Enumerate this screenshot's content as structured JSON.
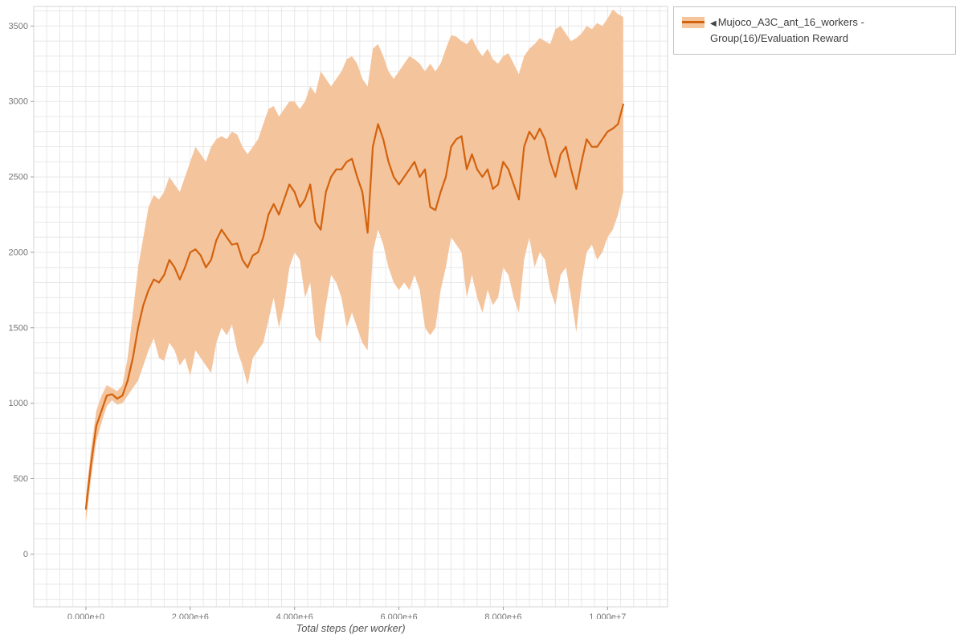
{
  "colors": {
    "line": "#d3620d",
    "band": "#f4c49d",
    "grid": "#e8e8e8",
    "axis_border": "#d5d5d5",
    "tick": "#9a9a9a",
    "tick_text": "#777777",
    "legend_border": "#c3c3c3",
    "legend_text": "#3d3d3d"
  },
  "legend": {
    "toggle_icon": "◀",
    "label": "Mujoco_A3C_ant_16_workers - Group(16)/Evaluation Reward"
  },
  "chart_data": {
    "type": "line",
    "title": "",
    "xlabel": "Total steps (per worker)",
    "ylabel": "",
    "legend_position": "top-right-outside",
    "grid": true,
    "xlim": [
      -1000000,
      11150000
    ],
    "ylim": [
      -350,
      3630
    ],
    "x_minor_step": 250000,
    "y_minor_step": 100,
    "x_tick_values": [
      0,
      2000000,
      4000000,
      6000000,
      8000000,
      10000000
    ],
    "x_tick_labels": [
      "0.000e+0",
      "2.000e+6",
      "4.000e+6",
      "6.000e+6",
      "8.000e+6",
      "1.000e+7"
    ],
    "y_tick_values": [
      0,
      500,
      1000,
      1500,
      2000,
      2500,
      3000,
      3500
    ],
    "y_tick_labels": [
      "0",
      "500",
      "1000",
      "1500",
      "2000",
      "2500",
      "3000",
      "3500"
    ],
    "series": [
      {
        "name": "Mujoco_A3C_ant_16_workers - Group(16)/Evaluation Reward",
        "x_start": 0,
        "x_step": 100000,
        "mean": [
          300,
          600,
          850,
          950,
          1050,
          1060,
          1030,
          1050,
          1150,
          1300,
          1500,
          1650,
          1750,
          1820,
          1800,
          1850,
          1950,
          1900,
          1820,
          1900,
          2000,
          2020,
          1980,
          1900,
          1950,
          2080,
          2150,
          2100,
          2050,
          2060,
          1950,
          1900,
          1980,
          2000,
          2100,
          2250,
          2320,
          2250,
          2350,
          2450,
          2400,
          2300,
          2350,
          2450,
          2200,
          2150,
          2400,
          2500,
          2550,
          2550,
          2600,
          2620,
          2500,
          2400,
          2130,
          2700,
          2850,
          2750,
          2600,
          2500,
          2450,
          2500,
          2550,
          2600,
          2500,
          2550,
          2300,
          2280,
          2400,
          2500,
          2700,
          2750,
          2770,
          2550,
          2650,
          2550,
          2500,
          2550,
          2420,
          2450,
          2600,
          2550,
          2450,
          2350,
          2700,
          2800,
          2750,
          2820,
          2750,
          2600,
          2500,
          2650,
          2700,
          2550,
          2420,
          2600,
          2750,
          2700,
          2700,
          2750,
          2800,
          2820,
          2850,
          2980
        ],
        "upper": [
          380,
          700,
          950,
          1050,
          1120,
          1100,
          1080,
          1120,
          1300,
          1600,
          1900,
          2100,
          2300,
          2380,
          2350,
          2400,
          2500,
          2450,
          2400,
          2500,
          2600,
          2700,
          2650,
          2600,
          2700,
          2750,
          2770,
          2750,
          2800,
          2780,
          2700,
          2650,
          2700,
          2750,
          2850,
          2950,
          2970,
          2900,
          2950,
          3000,
          3000,
          2950,
          3000,
          3100,
          3050,
          3200,
          3150,
          3100,
          3150,
          3200,
          3280,
          3300,
          3250,
          3150,
          3100,
          3350,
          3380,
          3300,
          3200,
          3150,
          3200,
          3250,
          3300,
          3280,
          3250,
          3200,
          3250,
          3200,
          3250,
          3350,
          3440,
          3430,
          3400,
          3380,
          3420,
          3350,
          3300,
          3350,
          3280,
          3250,
          3300,
          3320,
          3250,
          3180,
          3300,
          3350,
          3380,
          3420,
          3400,
          3380,
          3480,
          3500,
          3450,
          3400,
          3420,
          3450,
          3500,
          3480,
          3520,
          3500,
          3550,
          3610,
          3580,
          3560
        ],
        "lower": [
          210,
          500,
          750,
          870,
          980,
          1020,
          990,
          1000,
          1050,
          1100,
          1150,
          1250,
          1350,
          1430,
          1300,
          1280,
          1400,
          1350,
          1250,
          1300,
          1180,
          1350,
          1300,
          1250,
          1200,
          1400,
          1500,
          1450,
          1520,
          1350,
          1250,
          1120,
          1300,
          1350,
          1400,
          1550,
          1700,
          1500,
          1650,
          1900,
          2000,
          1950,
          1700,
          1800,
          1450,
          1400,
          1650,
          1850,
          1800,
          1700,
          1500,
          1600,
          1500,
          1400,
          1350,
          2000,
          2150,
          2050,
          1900,
          1800,
          1750,
          1800,
          1750,
          1850,
          1750,
          1500,
          1450,
          1500,
          1750,
          1900,
          2100,
          2050,
          2000,
          1700,
          1850,
          1700,
          1600,
          1750,
          1650,
          1700,
          1900,
          1850,
          1700,
          1600,
          1950,
          2100,
          1900,
          2000,
          1950,
          1750,
          1650,
          1850,
          1900,
          1700,
          1470,
          1800,
          2000,
          2050,
          1950,
          2000,
          2100,
          2150,
          2250,
          2400
        ]
      }
    ]
  }
}
